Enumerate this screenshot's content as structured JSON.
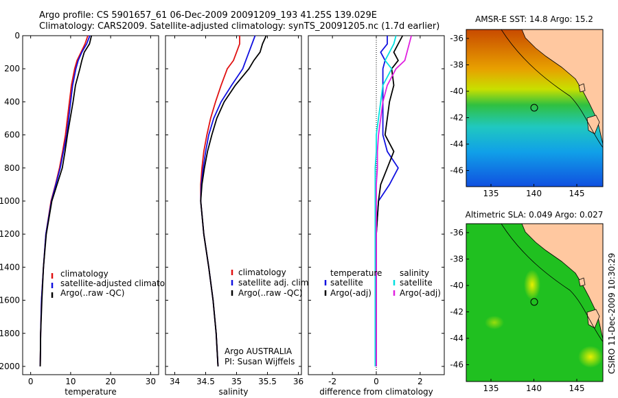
{
  "header": {
    "title_line1": "Argo profile: CS 5901657_61 06-Dec-2009 20091209_193 41.25S 139.029E",
    "title_line2": "Climatology: CARS2009. Satellite-adjusted climatology: synTS_20091205.nc (1.7d earlier)"
  },
  "panels": {
    "temperature": {
      "xlabel": "temperature",
      "legend": [
        "climatology",
        "satellite-adjusted climatology",
        "Argo(..raw -QC)"
      ]
    },
    "salinity": {
      "xlabel": "salinity",
      "legend": [
        "climatology",
        "satellite adj. clim.",
        "Argo(..raw -QC)"
      ],
      "credit_line1": "Argo AUSTRALIA",
      "credit_line2": "PI: Susan Wijffels"
    },
    "difference": {
      "xlabel": "difference from climatology",
      "legend_temp_title": "temperature",
      "legend_temp": [
        "satellite",
        "Argo(-adj)"
      ],
      "legend_sal_title": "salinity",
      "legend_sal": [
        "satellite",
        "Argo(-adj)"
      ]
    }
  },
  "maps": {
    "sst_title": "AMSR-E SST: 14.8 Argo: 15.2",
    "sla_title": "Altimetric SLA: 0.049 Argo: 0.027",
    "stamp": "CSIRO 11-Dec-2009 10:30:29",
    "lat_ticks": [
      "-36",
      "-38",
      "-40",
      "-42",
      "-44",
      "-46"
    ],
    "lon_ticks": [
      "135",
      "140",
      "145"
    ]
  },
  "colors": {
    "climatology": "#e01010",
    "satellite": "#1010e0",
    "argo": "#000000",
    "sal_satellite": "#00e0e0",
    "sal_argo": "#e020e0",
    "land": "#ffc8a0"
  },
  "chart_data": [
    {
      "type": "line",
      "title": "",
      "xlabel": "temperature",
      "ylabel": "",
      "xlim": [
        -2,
        32
      ],
      "ylim": [
        2050,
        0
      ],
      "xticks": [
        0,
        10,
        20,
        30
      ],
      "yticks": [
        0,
        200,
        400,
        600,
        800,
        1000,
        1200,
        1400,
        1600,
        1800,
        2000
      ],
      "y": [
        0,
        50,
        100,
        150,
        200,
        300,
        400,
        500,
        600,
        700,
        800,
        900,
        1000,
        1200,
        1400,
        1600,
        1800,
        2000
      ],
      "series": [
        {
          "name": "climatology",
          "color": "#e01010",
          "values": [
            14.3,
            13.6,
            12.6,
            11.6,
            11.0,
            10.2,
            9.7,
            9.2,
            8.7,
            8.0,
            7.2,
            6.2,
            5.1,
            3.8,
            3.2,
            2.7,
            2.5,
            2.4
          ]
        },
        {
          "name": "satellite-adjusted climatology",
          "color": "#1010e0",
          "values": [
            14.8,
            14.0,
            12.8,
            11.9,
            11.3,
            10.5,
            10.0,
            9.5,
            9.0,
            8.2,
            7.4,
            6.3,
            5.2,
            3.8,
            3.2,
            2.7,
            2.5,
            2.4
          ]
        },
        {
          "name": "Argo(..raw -QC)",
          "color": "#000000",
          "values": [
            15.2,
            14.7,
            13.4,
            12.8,
            12.3,
            11.2,
            10.6,
            9.9,
            9.2,
            8.6,
            7.9,
            6.6,
            5.3,
            3.9,
            3.2,
            2.8,
            2.5,
            2.4
          ]
        }
      ]
    },
    {
      "type": "line",
      "title": "",
      "xlabel": "salinity",
      "ylabel": "",
      "xlim": [
        33.85,
        36.05
      ],
      "ylim": [
        2050,
        0
      ],
      "xticks": [
        34,
        34.5,
        35,
        35.5,
        36
      ],
      "yticks": [
        0,
        200,
        400,
        600,
        800,
        1000,
        1200,
        1400,
        1600,
        1800,
        2000
      ],
      "y": [
        0,
        50,
        100,
        150,
        200,
        300,
        400,
        500,
        600,
        700,
        800,
        900,
        1000,
        1200,
        1400,
        1600,
        1800,
        2000
      ],
      "series": [
        {
          "name": "climatology",
          "color": "#e01010",
          "values": [
            35.05,
            35.05,
            35.0,
            34.95,
            34.85,
            34.75,
            34.66,
            34.58,
            34.52,
            34.47,
            34.44,
            34.42,
            34.42,
            34.47,
            34.55,
            34.62,
            34.67,
            34.7
          ]
        },
        {
          "name": "satellite adj. clim.",
          "color": "#1010e0",
          "values": [
            35.3,
            35.25,
            35.2,
            35.15,
            35.1,
            34.92,
            34.75,
            34.63,
            34.55,
            34.5,
            34.46,
            34.43,
            34.42,
            34.47,
            34.55,
            34.62,
            34.67,
            34.7
          ]
        },
        {
          "name": "Argo(..raw -QC)",
          "color": "#000000",
          "values": [
            35.48,
            35.42,
            35.38,
            35.28,
            35.2,
            34.98,
            34.8,
            34.68,
            34.6,
            34.53,
            34.48,
            34.44,
            34.42,
            34.47,
            34.55,
            34.62,
            34.67,
            34.7
          ]
        }
      ]
    },
    {
      "type": "line",
      "title": "",
      "xlabel": "difference from climatology",
      "ylabel": "",
      "xlim": [
        -3.1,
        3.1
      ],
      "ylim": [
        2050,
        0
      ],
      "xticks": [
        -2,
        0,
        2
      ],
      "yticks": [
        0,
        200,
        400,
        600,
        800,
        1000,
        1200,
        1400,
        1600,
        1800,
        2000
      ],
      "y": [
        0,
        50,
        100,
        150,
        200,
        300,
        400,
        500,
        600,
        700,
        800,
        900,
        1000,
        1200,
        1400,
        1600,
        1800,
        2000
      ],
      "series": [
        {
          "name": "temperature satellite",
          "color": "#1010e0",
          "values": [
            0.5,
            0.5,
            0.2,
            0.4,
            0.3,
            0.3,
            0.3,
            0.3,
            0.3,
            0.5,
            1.0,
            0.6,
            0.1,
            0.0,
            0.0,
            0.0,
            0.0,
            0.0
          ]
        },
        {
          "name": "temperature Argo(-adj)",
          "color": "#000000",
          "values": [
            1.2,
            1.0,
            0.8,
            1.0,
            0.7,
            0.8,
            0.6,
            0.5,
            0.4,
            0.8,
            0.5,
            0.2,
            0.1,
            0.0,
            0.0,
            0.0,
            0.0,
            0.0
          ]
        },
        {
          "name": "salinity satellite",
          "color": "#00e0e0",
          "values": [
            0.9,
            0.8,
            0.6,
            0.4,
            0.7,
            0.3,
            0.2,
            0.1,
            0.0,
            0.0,
            -0.05,
            -0.05,
            -0.05,
            -0.05,
            -0.05,
            -0.05,
            -0.05,
            -0.05
          ]
        },
        {
          "name": "salinity Argo(-adj)",
          "color": "#e020e0",
          "values": [
            1.6,
            1.5,
            1.4,
            1.3,
            0.9,
            0.5,
            0.3,
            0.2,
            0.1,
            0.05,
            0.05,
            0.0,
            0.0,
            0.0,
            0.0,
            0.0,
            0.0,
            0.0
          ]
        }
      ]
    }
  ]
}
